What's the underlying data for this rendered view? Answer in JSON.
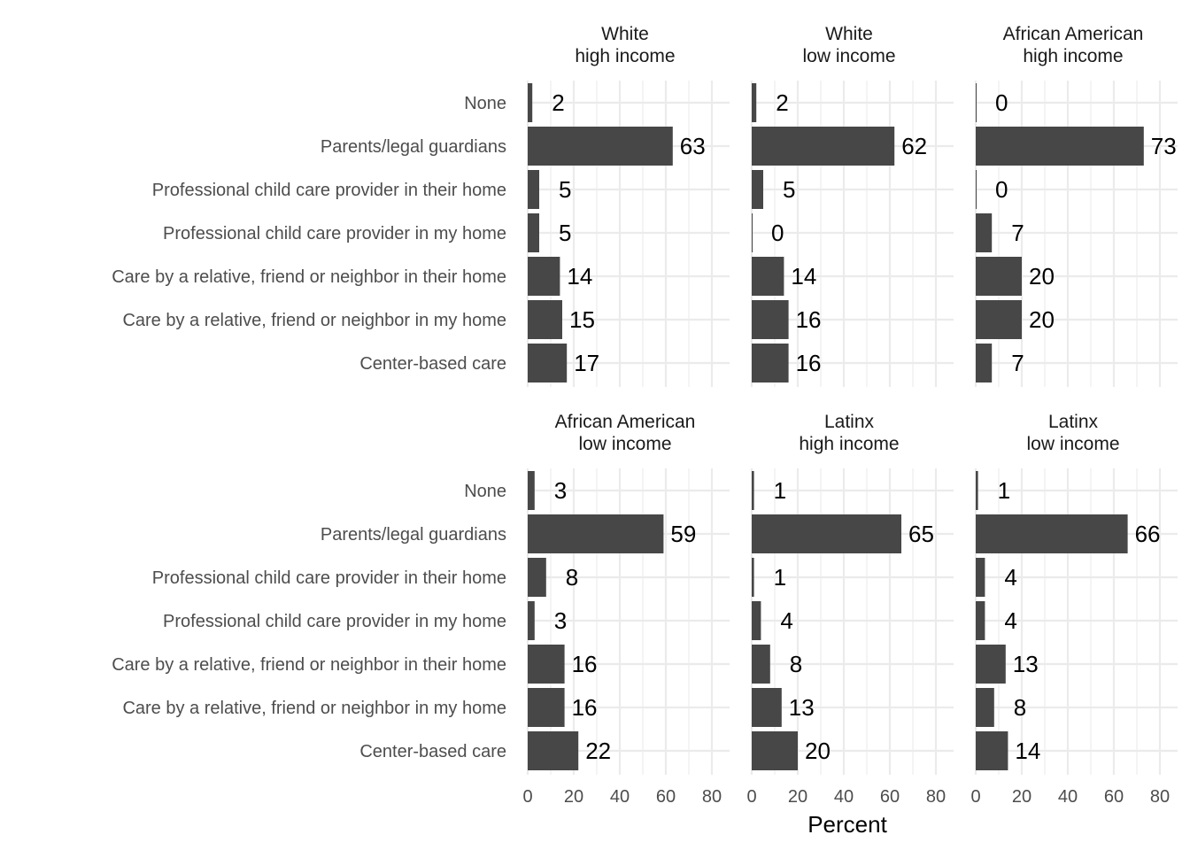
{
  "chart_data": {
    "type": "bar",
    "orientation": "horizontal",
    "xlabel": "Percent",
    "ylabel": "",
    "xlim": [
      0,
      88
    ],
    "x_ticks": [
      0,
      20,
      40,
      60,
      80
    ],
    "categories": [
      "None",
      "Parents/legal guardians",
      "Professional child care provider in their home",
      "Professional child care provider in my home",
      "Care by a relative, friend or neighbor in their home",
      "Care by a relative, friend or neighbor in my home",
      "Center-based care"
    ],
    "panels": [
      {
        "title": [
          "White",
          "high income"
        ],
        "values": [
          2,
          63,
          5,
          5,
          14,
          15,
          17
        ]
      },
      {
        "title": [
          "White",
          "low income"
        ],
        "values": [
          2,
          62,
          5,
          0,
          14,
          16,
          16
        ]
      },
      {
        "title": [
          "African American",
          "high income"
        ],
        "values": [
          0,
          73,
          0,
          7,
          20,
          20,
          7
        ]
      },
      {
        "title": [
          "African American",
          "low income"
        ],
        "values": [
          3,
          59,
          8,
          3,
          16,
          16,
          22
        ]
      },
      {
        "title": [
          "Latinx",
          "high income"
        ],
        "values": [
          1,
          65,
          1,
          4,
          8,
          13,
          20
        ]
      },
      {
        "title": [
          "Latinx",
          "low income"
        ],
        "values": [
          1,
          66,
          4,
          4,
          13,
          8,
          14
        ]
      }
    ],
    "bar_color": "#474747",
    "grid": true,
    "legend": "none"
  }
}
